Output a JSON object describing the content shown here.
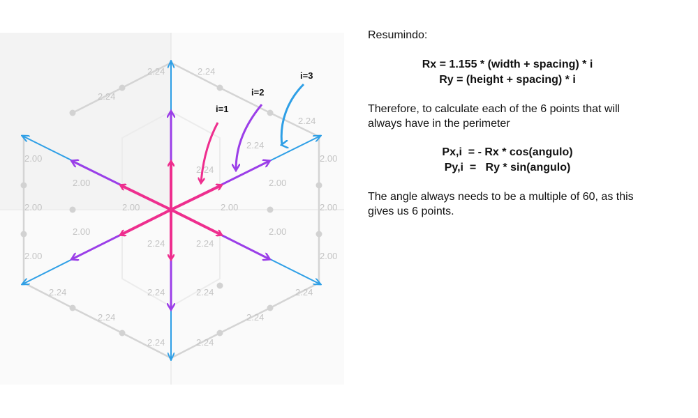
{
  "explanation": {
    "heading": "Resumindo:",
    "formula_rx": "Rx = 1.155 * (width + spacing) * i",
    "formula_ry": "Ry = (height + spacing) * i",
    "paragraph1_line1": "Therefore, to calculate each of the 6 points that will",
    "paragraph1_line2": "always have in the perimeter",
    "formula_px": "Px,i  = - Rx * cos(angulo)",
    "formula_py": "Py,i  =   Ry * sin(angulo)",
    "paragraph2_line1": "The angle always needs to be a multiple of 60, as this",
    "paragraph2_line2": "gives us 6 points."
  },
  "diagram": {
    "iteration_labels": {
      "i1": "i=1",
      "i2": "i=2",
      "i3": "i=3"
    },
    "dim_label_224": "2.24",
    "dim_label_200": "2.00",
    "colors": {
      "i1": "#ee2e8e",
      "i2": "#9b3ee8",
      "i3": "#2e9fe6",
      "grid": "#d4d4d4",
      "panel": "#f4f4f4"
    }
  }
}
